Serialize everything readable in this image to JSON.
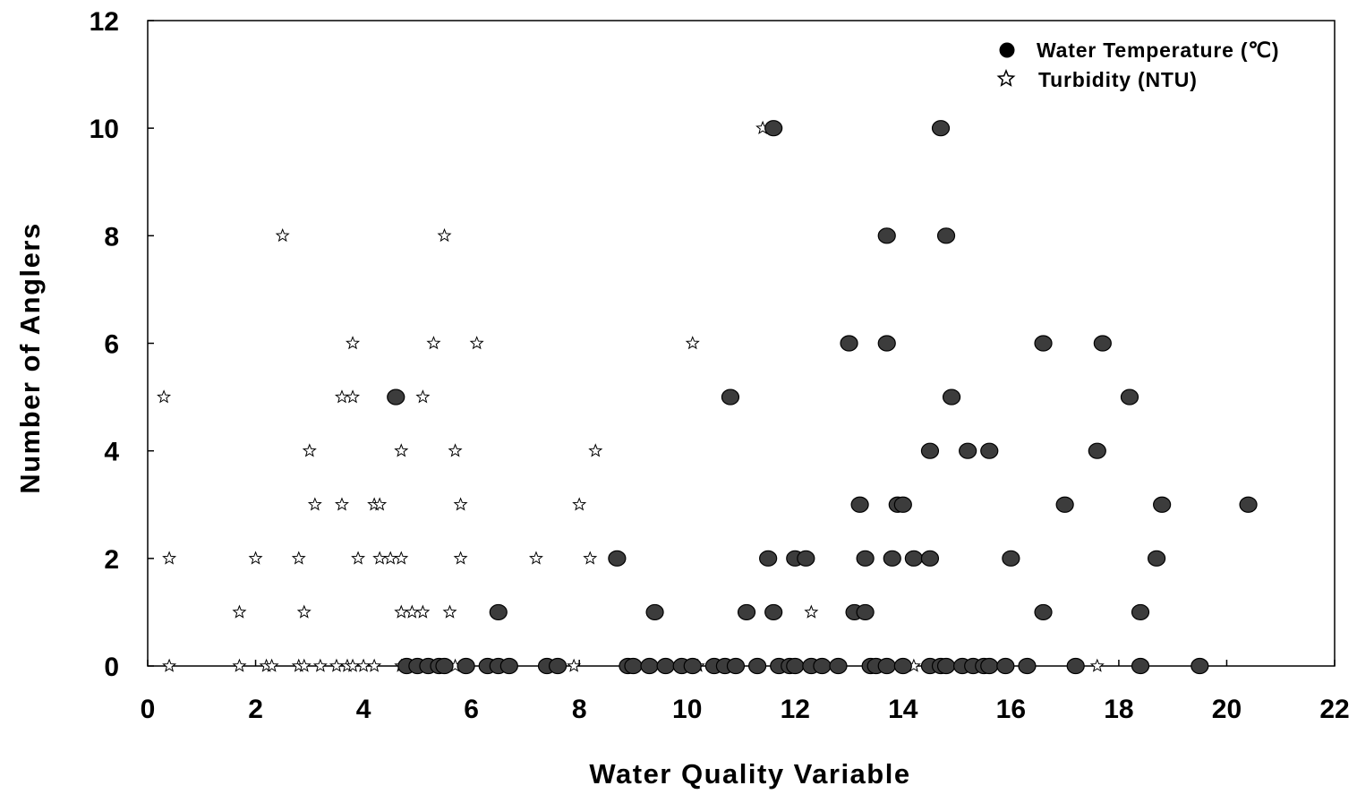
{
  "chart_data": {
    "type": "scatter",
    "title": "",
    "xlabel": "Water Quality Variable",
    "ylabel": "Number of Anglers",
    "xlim": [
      0,
      22
    ],
    "ylim": [
      0,
      12
    ],
    "x_ticks": [
      0,
      2,
      4,
      6,
      8,
      10,
      12,
      14,
      16,
      18,
      20,
      22
    ],
    "y_ticks": [
      0,
      2,
      4,
      6,
      8,
      10,
      12
    ],
    "grid": false,
    "legend_position": "top-right",
    "series": [
      {
        "name": "Water Temperature (℃)",
        "marker": "filled-circle",
        "color": "#3c3c3c",
        "points": [
          [
            4.6,
            5
          ],
          [
            11.6,
            10
          ],
          [
            14.7,
            10
          ],
          [
            13.7,
            8
          ],
          [
            14.8,
            8
          ],
          [
            13.0,
            6
          ],
          [
            13.7,
            6
          ],
          [
            16.6,
            6
          ],
          [
            17.7,
            6
          ],
          [
            10.8,
            5
          ],
          [
            14.9,
            5
          ],
          [
            18.2,
            5
          ],
          [
            14.5,
            4
          ],
          [
            15.2,
            4
          ],
          [
            15.6,
            4
          ],
          [
            17.6,
            4
          ],
          [
            13.2,
            3
          ],
          [
            13.9,
            3
          ],
          [
            14.0,
            3
          ],
          [
            17.0,
            3
          ],
          [
            18.8,
            3
          ],
          [
            20.4,
            3
          ],
          [
            8.7,
            2
          ],
          [
            11.5,
            2
          ],
          [
            12.0,
            2
          ],
          [
            12.2,
            2
          ],
          [
            13.3,
            2
          ],
          [
            13.8,
            2
          ],
          [
            14.2,
            2
          ],
          [
            14.5,
            2
          ],
          [
            16.0,
            2
          ],
          [
            18.7,
            2
          ],
          [
            6.5,
            1
          ],
          [
            9.4,
            1
          ],
          [
            11.1,
            1
          ],
          [
            11.6,
            1
          ],
          [
            13.1,
            1
          ],
          [
            13.3,
            1
          ],
          [
            16.6,
            1
          ],
          [
            18.4,
            1
          ],
          [
            4.8,
            0
          ],
          [
            5.0,
            0
          ],
          [
            5.2,
            0
          ],
          [
            5.4,
            0
          ],
          [
            5.5,
            0
          ],
          [
            5.9,
            0
          ],
          [
            6.3,
            0
          ],
          [
            6.5,
            0
          ],
          [
            6.7,
            0
          ],
          [
            7.4,
            0
          ],
          [
            7.6,
            0
          ],
          [
            8.9,
            0
          ],
          [
            9.0,
            0
          ],
          [
            9.3,
            0
          ],
          [
            9.6,
            0
          ],
          [
            9.9,
            0
          ],
          [
            10.1,
            0
          ],
          [
            10.5,
            0
          ],
          [
            10.7,
            0
          ],
          [
            10.9,
            0
          ],
          [
            11.3,
            0
          ],
          [
            11.7,
            0
          ],
          [
            11.9,
            0
          ],
          [
            12.0,
            0
          ],
          [
            12.3,
            0
          ],
          [
            12.5,
            0
          ],
          [
            12.8,
            0
          ],
          [
            13.4,
            0
          ],
          [
            13.5,
            0
          ],
          [
            13.7,
            0
          ],
          [
            14.0,
            0
          ],
          [
            14.5,
            0
          ],
          [
            14.7,
            0
          ],
          [
            14.8,
            0
          ],
          [
            15.1,
            0
          ],
          [
            15.3,
            0
          ],
          [
            15.5,
            0
          ],
          [
            15.6,
            0
          ],
          [
            15.9,
            0
          ],
          [
            16.3,
            0
          ],
          [
            17.2,
            0
          ],
          [
            18.4,
            0
          ],
          [
            19.5,
            0
          ]
        ]
      },
      {
        "name": "Turbidity (NTU)",
        "marker": "open-star",
        "color": "#000000",
        "points": [
          [
            11.4,
            10
          ],
          [
            11.6,
            10
          ],
          [
            2.5,
            8
          ],
          [
            5.5,
            8
          ],
          [
            3.8,
            6
          ],
          [
            5.3,
            6
          ],
          [
            6.1,
            6
          ],
          [
            10.1,
            6
          ],
          [
            0.3,
            5
          ],
          [
            3.6,
            5
          ],
          [
            3.8,
            5
          ],
          [
            5.1,
            5
          ],
          [
            3.0,
            4
          ],
          [
            4.7,
            4
          ],
          [
            5.7,
            4
          ],
          [
            8.3,
            4
          ],
          [
            3.1,
            3
          ],
          [
            3.6,
            3
          ],
          [
            4.2,
            3
          ],
          [
            4.3,
            3
          ],
          [
            5.8,
            3
          ],
          [
            8.0,
            3
          ],
          [
            0.4,
            2
          ],
          [
            2.0,
            2
          ],
          [
            2.8,
            2
          ],
          [
            3.9,
            2
          ],
          [
            4.3,
            2
          ],
          [
            4.5,
            2
          ],
          [
            4.7,
            2
          ],
          [
            5.8,
            2
          ],
          [
            7.2,
            2
          ],
          [
            8.2,
            2
          ],
          [
            8.7,
            2
          ],
          [
            1.7,
            1
          ],
          [
            2.9,
            1
          ],
          [
            4.7,
            1
          ],
          [
            4.9,
            1
          ],
          [
            5.1,
            1
          ],
          [
            5.6,
            1
          ],
          [
            12.3,
            1
          ],
          [
            0.4,
            0
          ],
          [
            1.7,
            0
          ],
          [
            2.2,
            0
          ],
          [
            2.3,
            0
          ],
          [
            2.8,
            0
          ],
          [
            2.9,
            0
          ],
          [
            3.2,
            0
          ],
          [
            3.5,
            0
          ],
          [
            3.7,
            0
          ],
          [
            3.8,
            0
          ],
          [
            4.0,
            0
          ],
          [
            4.2,
            0
          ],
          [
            4.7,
            0
          ],
          [
            5.7,
            0
          ],
          [
            6.4,
            0
          ],
          [
            7.9,
            0
          ],
          [
            10.2,
            0
          ],
          [
            14.2,
            0
          ],
          [
            17.6,
            0
          ]
        ]
      }
    ]
  }
}
